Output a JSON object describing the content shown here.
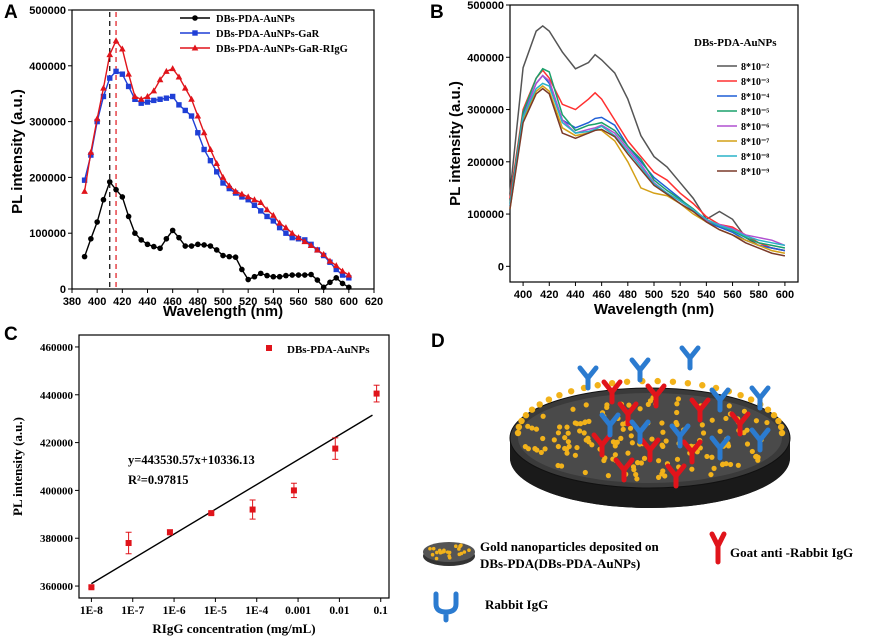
{
  "panels": {
    "A": "A",
    "B": "B",
    "C": "C",
    "D": "D"
  },
  "chart_data": [
    {
      "id": "A",
      "type": "line",
      "xlabel": "Wavelength (nm)",
      "ylabel": "PL intensity  (a.u.)",
      "xlim": [
        380,
        620
      ],
      "ylim": [
        0,
        500000
      ],
      "xticks": [
        380,
        400,
        420,
        440,
        460,
        480,
        500,
        520,
        540,
        560,
        580,
        600,
        620
      ],
      "yticks": [
        0,
        100000,
        200000,
        300000,
        400000,
        500000
      ],
      "reference_lines": [
        410,
        415
      ],
      "series": [
        {
          "name": "DBs-PDA-AuNPs",
          "color": "#000000",
          "marker": "circle",
          "x": [
            390,
            395,
            400,
            405,
            410,
            415,
            420,
            425,
            430,
            435,
            440,
            445,
            450,
            455,
            460,
            465,
            470,
            475,
            480,
            485,
            490,
            495,
            500,
            505,
            510,
            515,
            520,
            525,
            530,
            535,
            540,
            545,
            550,
            555,
            560,
            565,
            570,
            575,
            580,
            585,
            590,
            595,
            600
          ],
          "y": [
            58000,
            90000,
            120000,
            160000,
            192000,
            178000,
            165000,
            130000,
            100000,
            88000,
            80000,
            76000,
            73000,
            90000,
            105000,
            92000,
            77000,
            77000,
            80000,
            79000,
            77000,
            70000,
            60000,
            58000,
            57000,
            35000,
            17000,
            22000,
            28000,
            24000,
            22000,
            22000,
            24000,
            25000,
            25000,
            25000,
            26000,
            16000,
            3000,
            12000,
            20000,
            10000,
            3000
          ]
        },
        {
          "name": "DBs-PDA-AuNPs-GaR",
          "color": "#1f3fd6",
          "marker": "square",
          "x": [
            390,
            395,
            400,
            405,
            410,
            415,
            420,
            425,
            430,
            435,
            440,
            445,
            450,
            455,
            460,
            465,
            470,
            475,
            480,
            485,
            490,
            495,
            500,
            505,
            510,
            515,
            520,
            525,
            530,
            535,
            540,
            545,
            550,
            555,
            560,
            565,
            570,
            575,
            580,
            585,
            590,
            595,
            600
          ],
          "y": [
            195000,
            240000,
            300000,
            345000,
            378000,
            390000,
            385000,
            363000,
            340000,
            333000,
            335000,
            338000,
            340000,
            342000,
            345000,
            330000,
            320000,
            310000,
            280000,
            250000,
            230000,
            210000,
            190000,
            180000,
            172000,
            165000,
            160000,
            150000,
            140000,
            130000,
            122000,
            110000,
            100000,
            92000,
            90000,
            88000,
            80000,
            70000,
            60000,
            48000,
            35000,
            25000,
            20000
          ]
        },
        {
          "name": "DBs-PDA-AuNPs-GaR-RIgG",
          "color": "#e0141b",
          "marker": "triangle",
          "x": [
            390,
            395,
            400,
            405,
            410,
            415,
            420,
            425,
            430,
            435,
            440,
            445,
            450,
            455,
            460,
            465,
            470,
            475,
            480,
            485,
            490,
            495,
            500,
            505,
            510,
            515,
            520,
            525,
            530,
            535,
            540,
            545,
            550,
            555,
            560,
            565,
            570,
            575,
            580,
            585,
            590,
            595,
            600
          ],
          "y": [
            175000,
            245000,
            305000,
            360000,
            420000,
            445000,
            430000,
            385000,
            345000,
            340000,
            345000,
            355000,
            375000,
            390000,
            395000,
            380000,
            360000,
            340000,
            310000,
            280000,
            250000,
            225000,
            200000,
            185000,
            175000,
            170000,
            165000,
            160000,
            155000,
            142000,
            132000,
            118000,
            110000,
            100000,
            92000,
            85000,
            78000,
            70000,
            62000,
            50000,
            42000,
            32000,
            25000
          ]
        }
      ]
    },
    {
      "id": "B",
      "type": "line",
      "xlabel": "Wavelength (nm)",
      "ylabel": "PL intensity  (a.u.)",
      "title": "DBs-PDA-AuNPs",
      "xlim": [
        390,
        610
      ],
      "ylim": [
        -30000,
        500000
      ],
      "xticks": [
        400,
        420,
        440,
        460,
        480,
        500,
        520,
        540,
        560,
        580,
        600
      ],
      "yticks": [
        0,
        100000,
        200000,
        300000,
        400000,
        500000
      ],
      "series": [
        {
          "name": "8*10⁻²",
          "color": "#555555",
          "x": [
            390,
            400,
            410,
            415,
            420,
            430,
            440,
            450,
            455,
            460,
            470,
            480,
            490,
            500,
            510,
            520,
            530,
            540,
            550,
            560,
            570,
            580,
            590,
            600
          ],
          "y": [
            140000,
            380000,
            450000,
            460000,
            450000,
            410000,
            378000,
            390000,
            405000,
            395000,
            370000,
            320000,
            250000,
            210000,
            190000,
            160000,
            130000,
            90000,
            105000,
            90000,
            55000,
            40000,
            35000,
            30000
          ]
        },
        {
          "name": "8*10⁻³",
          "color": "#ff3030",
          "x": [
            390,
            400,
            410,
            415,
            420,
            430,
            440,
            450,
            455,
            460,
            470,
            480,
            490,
            500,
            510,
            520,
            530,
            540,
            550,
            560,
            570,
            580,
            590,
            600
          ],
          "y": [
            130000,
            300000,
            360000,
            375000,
            360000,
            310000,
            300000,
            320000,
            332000,
            320000,
            280000,
            240000,
            210000,
            180000,
            165000,
            140000,
            120000,
            95000,
            80000,
            75000,
            60000,
            45000,
            35000,
            30000
          ]
        },
        {
          "name": "8*10⁻⁴",
          "color": "#1f5fd6",
          "x": [
            390,
            400,
            410,
            415,
            420,
            430,
            440,
            450,
            455,
            460,
            470,
            480,
            490,
            500,
            510,
            520,
            530,
            540,
            550,
            560,
            570,
            580,
            590,
            600
          ],
          "y": [
            120000,
            290000,
            350000,
            365000,
            350000,
            280000,
            265000,
            275000,
            283000,
            285000,
            270000,
            230000,
            200000,
            170000,
            150000,
            130000,
            105000,
            85000,
            75000,
            65000,
            50000,
            40000,
            35000,
            30000
          ]
        },
        {
          "name": "8*10⁻⁵",
          "color": "#1aa06b",
          "x": [
            390,
            400,
            410,
            415,
            420,
            430,
            440,
            450,
            455,
            460,
            470,
            480,
            490,
            500,
            510,
            520,
            530,
            540,
            550,
            560,
            570,
            580,
            590,
            600
          ],
          "y": [
            120000,
            295000,
            360000,
            378000,
            372000,
            290000,
            260000,
            270000,
            272000,
            275000,
            260000,
            230000,
            205000,
            165000,
            145000,
            128000,
            110000,
            88000,
            78000,
            68000,
            55000,
            45000,
            40000,
            35000
          ]
        },
        {
          "name": "8*10⁻⁶",
          "color": "#b050d0",
          "x": [
            390,
            400,
            410,
            415,
            420,
            430,
            440,
            450,
            455,
            460,
            470,
            480,
            490,
            500,
            510,
            520,
            530,
            540,
            550,
            560,
            570,
            580,
            590,
            600
          ],
          "y": [
            115000,
            285000,
            350000,
            365000,
            355000,
            280000,
            255000,
            262000,
            265000,
            270000,
            255000,
            225000,
            195000,
            160000,
            140000,
            125000,
            108000,
            88000,
            80000,
            72000,
            60000,
            55000,
            50000,
            40000
          ]
        },
        {
          "name": "8*10⁻⁷",
          "color": "#d4a017",
          "x": [
            390,
            400,
            410,
            415,
            420,
            430,
            440,
            450,
            455,
            460,
            470,
            480,
            490,
            500,
            510,
            520,
            530,
            540,
            550,
            560,
            570,
            580,
            590,
            600
          ],
          "y": [
            110000,
            280000,
            335000,
            345000,
            335000,
            265000,
            250000,
            255000,
            262000,
            260000,
            240000,
            200000,
            150000,
            140000,
            135000,
            120000,
            100000,
            85000,
            70000,
            60000,
            50000,
            40000,
            30000,
            25000
          ]
        },
        {
          "name": "8*10⁻⁸",
          "color": "#2ab3c8",
          "x": [
            390,
            400,
            410,
            415,
            420,
            430,
            440,
            450,
            455,
            460,
            470,
            480,
            490,
            500,
            510,
            520,
            530,
            540,
            550,
            560,
            570,
            580,
            590,
            600
          ],
          "y": [
            115000,
            285000,
            340000,
            350000,
            345000,
            275000,
            255000,
            258000,
            262000,
            268000,
            250000,
            220000,
            190000,
            158000,
            140000,
            125000,
            108000,
            90000,
            78000,
            70000,
            58000,
            50000,
            45000,
            40000
          ]
        },
        {
          "name": "8*10⁻⁹",
          "color": "#7a3a2a",
          "x": [
            390,
            400,
            410,
            415,
            420,
            430,
            440,
            450,
            455,
            460,
            470,
            480,
            490,
            500,
            510,
            520,
            530,
            540,
            550,
            560,
            570,
            580,
            590,
            600
          ],
          "y": [
            110000,
            275000,
            330000,
            340000,
            330000,
            255000,
            245000,
            255000,
            260000,
            262000,
            248000,
            215000,
            185000,
            155000,
            138000,
            120000,
            105000,
            85000,
            70000,
            60000,
            45000,
            35000,
            25000,
            20000
          ]
        }
      ]
    },
    {
      "id": "C",
      "type": "scatter",
      "xlabel": "RIgG concentration (mg/mL)",
      "ylabel": "PL intensity (a.u.)",
      "xscale": "log",
      "xlim_log10": [
        -8.3,
        -0.8
      ],
      "ylim": [
        355000,
        465000
      ],
      "xtick_labels": [
        "1E-8",
        "1E-7",
        "1E-6",
        "1E-5",
        "1E-4",
        "0.001",
        "0.01",
        "0.1"
      ],
      "xtick_log10": [
        -8,
        -7,
        -6,
        -5,
        -4,
        -3,
        -2,
        -1
      ],
      "yticks": [
        360000,
        380000,
        400000,
        420000,
        440000,
        460000
      ],
      "legend": "DBs-PDA-AuNPs",
      "equation": "y=443530.57x+10336.13",
      "r2": "R²=0.97815",
      "points_log10_x": [
        -8,
        -7.1,
        -6.1,
        -5.1,
        -4.1,
        -3.1,
        -2.1,
        -1.1
      ],
      "y": [
        359500,
        378000,
        382500,
        390500,
        392000,
        400000,
        417500,
        440500
      ],
      "yerr": [
        500,
        4500,
        1000,
        500,
        4000,
        3000,
        4500,
        3500
      ],
      "fit_line_log10_x": [
        -8,
        -1.2
      ],
      "fit_line_y": [
        361000,
        431500
      ]
    }
  ],
  "diagram": {
    "legend_gold_line1": "Gold nanoparticles deposited on",
    "legend_gold_line2": "DBs-PDA(DBs-PDA-AuNPs)",
    "legend_goat": "Goat anti -Rabbit IgG",
    "legend_rabbit": "Rabbit IgG"
  }
}
